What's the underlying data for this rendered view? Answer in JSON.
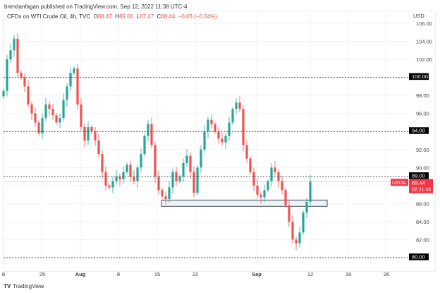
{
  "header": {
    "published": "brendanfagan published on TradingView.com, Sep 12, 2022 11:38 UTC-4"
  },
  "legend": {
    "symbol": "CFDs on WTI Crude Oil, 4h, TVC",
    "o_label": "O",
    "o": "88.47",
    "h_label": "H",
    "h": "89.06",
    "l_label": "L",
    "l": "87.47",
    "c_label": "C",
    "c": "88.44",
    "change": "−0.03 (−0.04%)"
  },
  "footer": {
    "brand": "TradingView"
  },
  "colors": {
    "up": "#26a69a",
    "down": "#ef5350",
    "line": "#555555",
    "badge": "#f23645"
  },
  "chart_data": {
    "type": "candlestick",
    "currency": "USD",
    "ylim": [
      80,
      106
    ],
    "y_ticks": [
      "106.00",
      "104.00",
      "102.00",
      "100.00",
      "98.00",
      "96.00",
      "94.00",
      "92.00",
      "90.00",
      "88.00",
      "86.00",
      "84.00",
      "82.00",
      "80.00"
    ],
    "x_ticks": [
      "8",
      "25",
      "Aug",
      "8",
      "15",
      "22",
      "Sep",
      "12",
      "19",
      "26"
    ],
    "grid": true,
    "closes": [
      98.5,
      102,
      103,
      104.3,
      100.5,
      100,
      99,
      97,
      96,
      95,
      93.8,
      95.5,
      97,
      96.5,
      95.8,
      95,
      95.5,
      97.5,
      99,
      100.5,
      101,
      97,
      94.5,
      93,
      94.5,
      94,
      93,
      91.5,
      89.5,
      88,
      87.8,
      88.5,
      89,
      88.7,
      89.5,
      90.3,
      89,
      88.5,
      90,
      91.5,
      93.5,
      94.8,
      92.5,
      89,
      87.5,
      86.8,
      86.5,
      87.8,
      89.5,
      88.5,
      89,
      90.5,
      91.3,
      89.5,
      87.2,
      90,
      92,
      94,
      95.3,
      94.8,
      94,
      93.2,
      92.8,
      93.5,
      95,
      96.5,
      97.2,
      96.5,
      92.5,
      91,
      89.5,
      88,
      87,
      86.7,
      87.5,
      88.5,
      90,
      89.5,
      88.5,
      87.5,
      85.8,
      84,
      82,
      81.6,
      82.8,
      85,
      86.2,
      88.44
    ],
    "levels": [
      {
        "price": 100,
        "label": "100.00"
      },
      {
        "price": 94,
        "label": "94.00"
      },
      {
        "price": 89,
        "label": "89.00"
      },
      {
        "price": 80,
        "label": "80.00"
      }
    ],
    "support_zone": [
      85.7,
      86.4
    ],
    "last_price": {
      "symbol": "USOIL",
      "price": "88.44",
      "countdown": "02:21:46",
      "value": 88.44
    }
  }
}
